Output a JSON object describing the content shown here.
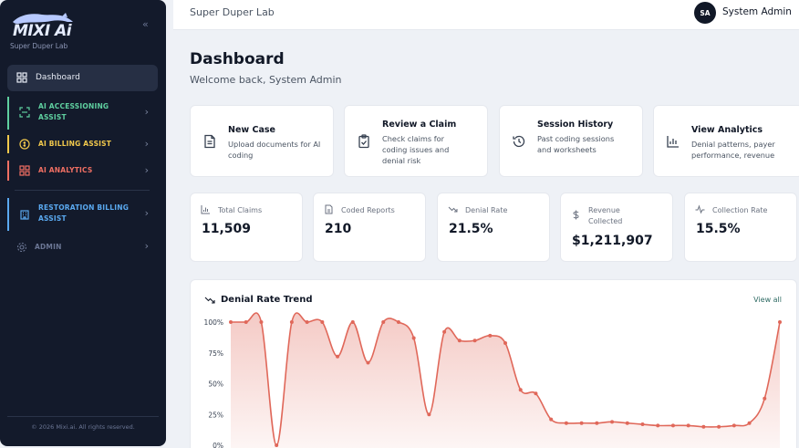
{
  "app": {
    "logo_text": "MIXI Ai",
    "logo_subtitle": "Super Duper Lab",
    "footer": "© 2026 Mixi.ai. All rights reserved."
  },
  "sidebar": {
    "collapse_glyph": "«",
    "items": [
      {
        "label": "Dashboard",
        "icon": "grid-icon",
        "color": "#e7ebf4"
      },
      {
        "label": "AI ACCESSIONING ASSIST",
        "icon": "scan-icon",
        "color": "#5fd0a0"
      },
      {
        "label": "AI BILLING ASSIST",
        "icon": "coin-icon",
        "color": "#f2c94c"
      },
      {
        "label": "AI ANALYTICS",
        "icon": "grid-icon",
        "color": "#f06f63"
      },
      {
        "label": "RESTORATION BILLING ASSIST",
        "icon": "building-icon",
        "color": "#5aa9f0"
      },
      {
        "label": "ADMIN",
        "icon": "gear-icon",
        "color": "#6b7694"
      }
    ]
  },
  "header": {
    "lab_name": "Super Duper Lab",
    "avatar_initials": "SA",
    "user_name": "System Admin"
  },
  "page": {
    "title": "Dashboard",
    "welcome": "Welcome back, System Admin"
  },
  "quick_actions": [
    {
      "title": "New Case",
      "desc": "Upload documents for AI coding",
      "icon": "document-icon"
    },
    {
      "title": "Review a Claim",
      "desc": "Check claims for coding issues and denial risk",
      "icon": "clipboard-check-icon"
    },
    {
      "title": "Session History",
      "desc": "Past coding sessions and worksheets",
      "icon": "history-icon"
    },
    {
      "title": "View Analytics",
      "desc": "Denial patterns, payer performance, revenue",
      "icon": "bar-chart-icon"
    }
  ],
  "stats": [
    {
      "label": "Total Claims",
      "value": "11,509",
      "icon": "bar-chart-icon"
    },
    {
      "label": "Coded Reports",
      "value": "210",
      "icon": "document-icon"
    },
    {
      "label": "Denial Rate",
      "value": "21.5%",
      "icon": "trend-down-icon"
    },
    {
      "label": "Revenue Collected",
      "value": "$1,211,907",
      "icon": "dollar-icon"
    },
    {
      "label": "Collection Rate",
      "value": "15.5%",
      "icon": "pulse-icon"
    }
  ],
  "trend": {
    "title": "Denial Rate Trend",
    "view_all": "View all"
  },
  "chart_data": {
    "type": "area",
    "title": "Denial Rate Trend",
    "yticks": [
      "100%",
      "75%",
      "50%",
      "25%",
      "0%"
    ],
    "ylim": [
      0,
      100
    ],
    "line_color": "#e0685a",
    "values": [
      100,
      100,
      100,
      0,
      100,
      100,
      100,
      72,
      100,
      67,
      100,
      100,
      87,
      25,
      92,
      85,
      85,
      89,
      83,
      45,
      42,
      21,
      18,
      18,
      18,
      19,
      18,
      17,
      16,
      16,
      16,
      15,
      15,
      16,
      18,
      38,
      100
    ]
  }
}
